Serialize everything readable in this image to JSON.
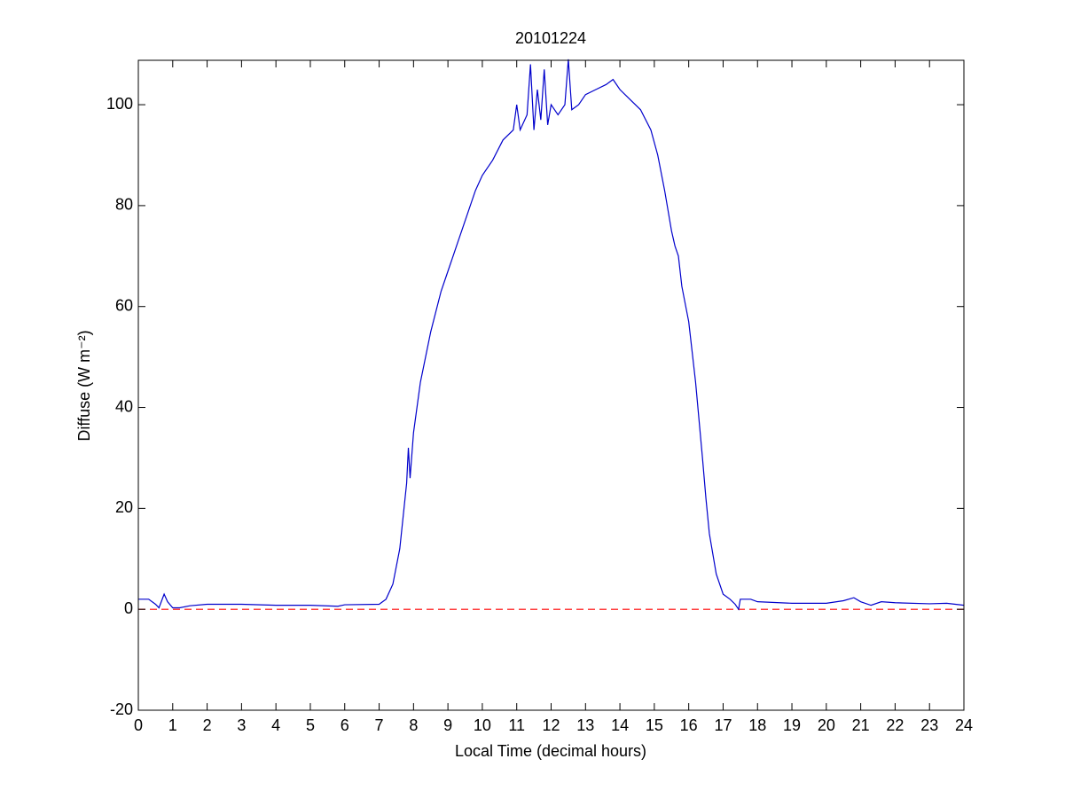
{
  "chart_data": {
    "type": "line",
    "title": "20101224",
    "xlabel": "Local Time (decimal hours)",
    "ylabel": "Diffuse (W m⁻²)",
    "xlim": [
      0,
      24
    ],
    "ylim": [
      -20,
      108.8
    ],
    "xticks": [
      0,
      1,
      2,
      3,
      4,
      5,
      6,
      7,
      8,
      9,
      10,
      11,
      12,
      13,
      14,
      15,
      16,
      17,
      18,
      19,
      20,
      21,
      22,
      23,
      24
    ],
    "yticks": [
      -20,
      0,
      20,
      40,
      60,
      80,
      100
    ],
    "grid": false,
    "reference_line": {
      "y": 0,
      "color": "#ff0000",
      "dashed": true
    },
    "series": [
      {
        "color": "#0000cc",
        "x": [
          0,
          0.3,
          0.5,
          0.6,
          0.75,
          0.85,
          1.0,
          1.2,
          1.5,
          2,
          3,
          4,
          5,
          5.8,
          6,
          7,
          7.2,
          7.4,
          7.6,
          7.8,
          7.85,
          7.9,
          8,
          8.2,
          8.5,
          8.8,
          9,
          9.3,
          9.6,
          9.8,
          10,
          10.3,
          10.6,
          10.9,
          11,
          11.1,
          11.3,
          11.4,
          11.5,
          11.6,
          11.7,
          11.8,
          11.9,
          12,
          12.2,
          12.4,
          12.5,
          12.6,
          12.8,
          13,
          13.3,
          13.6,
          13.8,
          14,
          14.3,
          14.6,
          14.9,
          15.1,
          15.3,
          15.5,
          15.6,
          15.7,
          15.8,
          16,
          16.2,
          16.4,
          16.5,
          16.6,
          16.8,
          17,
          17.2,
          17.35,
          17.45,
          17.5,
          17.8,
          18,
          19,
          20,
          20.5,
          20.8,
          21,
          21.3,
          21.6,
          22,
          23,
          23.5,
          24
        ],
        "values": [
          2,
          2,
          1,
          0.3,
          3,
          1.5,
          0.3,
          0.3,
          0.7,
          1,
          1,
          0.8,
          0.8,
          0.6,
          0.9,
          1,
          2,
          5,
          12,
          25,
          32,
          26,
          35,
          45,
          55,
          63,
          67,
          73,
          79,
          83,
          86,
          89,
          93,
          95,
          100,
          95,
          98,
          108,
          95,
          103,
          97,
          107,
          96,
          100,
          98,
          100,
          109,
          99,
          100,
          102,
          103,
          104,
          105,
          103,
          101,
          99,
          95,
          90,
          83,
          75,
          72,
          70,
          64,
          57,
          45,
          30,
          22,
          15,
          7,
          3,
          2,
          1,
          0,
          2,
          2,
          1.5,
          1.2,
          1.2,
          1.7,
          2.3,
          1.5,
          0.8,
          1.5,
          1.3,
          1.1,
          1.2,
          0.8
        ]
      }
    ]
  }
}
